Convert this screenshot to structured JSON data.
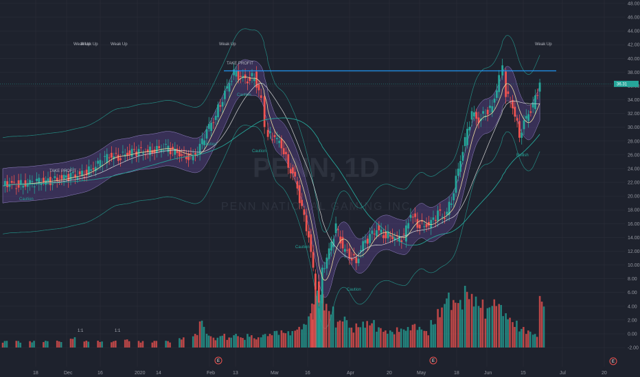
{
  "watermark": {
    "ticker": "PENN, 1D",
    "name": "PENN NATIONAL GAMING INC"
  },
  "price_label": "36.31",
  "colors": {
    "up": "#26a69a",
    "down": "#ef5350",
    "background": "#1e222d",
    "resistance": "#2196f3"
  },
  "annotations": {
    "take_profit_1": "TAKE PROFIT",
    "take_profit_2": "TAKE PROFIT",
    "weak_up": "Weak Up",
    "split": "1:1",
    "caution": "Caution",
    "bullish": "Bullish",
    "earnings": "E"
  },
  "chart_data": {
    "type": "candlestick",
    "yaxis": {
      "ticks": [
        "48.00",
        "46.00",
        "44.00",
        "42.00",
        "40.00",
        "38.00",
        "36.00",
        "34.00",
        "32.00",
        "30.00",
        "28.00",
        "26.00",
        "24.00",
        "22.00",
        "20.00",
        "18.00",
        "16.00",
        "14.00",
        "12.00",
        "10.00",
        "8.00",
        "6.00",
        "4.00",
        "2.00",
        "0.00",
        "-2.00"
      ],
      "range": [
        -2.7,
        48.7
      ]
    },
    "xaxis": {
      "ticks": [
        "18",
        "Dec",
        "16",
        "2020",
        "14",
        "Feb",
        "13",
        "Mar",
        "16",
        "Apr",
        "20",
        "May",
        "18",
        "Jun",
        "15",
        "Jul",
        "20"
      ]
    },
    "resistance_level": 38.2,
    "current_price": 36.31,
    "price_series": [
      [
        0,
        21.5
      ],
      [
        10,
        21.8
      ],
      [
        20,
        21.7
      ],
      [
        30,
        21.8
      ],
      [
        40,
        21.9
      ],
      [
        50,
        22.0
      ],
      [
        60,
        22.2
      ],
      [
        70,
        22.2
      ],
      [
        80,
        22.4
      ],
      [
        90,
        22.6
      ],
      [
        100,
        22.9
      ],
      [
        110,
        23.0
      ],
      [
        120,
        23.4
      ],
      [
        130,
        24.0
      ],
      [
        140,
        24.6
      ],
      [
        150,
        25.4
      ],
      [
        160,
        25.9
      ],
      [
        170,
        25.7
      ],
      [
        180,
        26.1
      ],
      [
        190,
        26.3
      ],
      [
        200,
        26.5
      ],
      [
        210,
        26.4
      ],
      [
        220,
        26.8
      ],
      [
        230,
        26.9
      ],
      [
        240,
        27.0
      ],
      [
        250,
        26.5
      ],
      [
        260,
        26.2
      ],
      [
        270,
        25.9
      ],
      [
        280,
        25.7
      ],
      [
        290,
        27.0
      ],
      [
        300,
        29.5
      ],
      [
        310,
        31.2
      ],
      [
        320,
        33.5
      ],
      [
        330,
        35.8
      ],
      [
        340,
        37.8
      ],
      [
        350,
        37.2
      ],
      [
        360,
        36.9
      ],
      [
        370,
        37.5
      ],
      [
        380,
        34.0
      ],
      [
        385,
        30.0
      ],
      [
        390,
        29.0
      ],
      [
        400,
        28.5
      ],
      [
        410,
        27.5
      ],
      [
        420,
        24.5
      ],
      [
        430,
        22.5
      ],
      [
        440,
        18.0
      ],
      [
        450,
        14.0
      ],
      [
        460,
        7.0
      ],
      [
        465,
        5.0
      ],
      [
        470,
        9.0
      ],
      [
        480,
        12.0
      ],
      [
        490,
        15.5
      ],
      [
        500,
        12.5
      ],
      [
        510,
        11.5
      ],
      [
        520,
        10.5
      ],
      [
        530,
        13.0
      ],
      [
        540,
        14.0
      ],
      [
        550,
        15.2
      ],
      [
        560,
        14.5
      ],
      [
        570,
        14.3
      ],
      [
        580,
        13.8
      ],
      [
        590,
        14.0
      ],
      [
        600,
        17.5
      ],
      [
        610,
        16.0
      ],
      [
        620,
        15.7
      ],
      [
        630,
        16.0
      ],
      [
        640,
        17.5
      ],
      [
        650,
        17.0
      ],
      [
        660,
        19.5
      ],
      [
        670,
        24.0
      ],
      [
        680,
        28.0
      ],
      [
        690,
        32.0
      ],
      [
        700,
        31.0
      ],
      [
        710,
        32.2
      ],
      [
        720,
        33.0
      ],
      [
        730,
        37.0
      ],
      [
        735,
        38.5
      ],
      [
        740,
        35.0
      ],
      [
        750,
        33.2
      ],
      [
        760,
        29.0
      ],
      [
        770,
        31.5
      ],
      [
        780,
        33.0
      ],
      [
        790,
        36.3
      ]
    ],
    "volume": [
      [
        0,
        1
      ],
      [
        20,
        1
      ],
      [
        40,
        1
      ],
      [
        60,
        1
      ],
      [
        80,
        1
      ],
      [
        100,
        1.5
      ],
      [
        120,
        1
      ],
      [
        140,
        1
      ],
      [
        160,
        1
      ],
      [
        180,
        1.2
      ],
      [
        200,
        1
      ],
      [
        220,
        1
      ],
      [
        240,
        1
      ],
      [
        260,
        1.5
      ],
      [
        280,
        2
      ],
      [
        290,
        4
      ],
      [
        300,
        2
      ],
      [
        310,
        1.5
      ],
      [
        320,
        2
      ],
      [
        330,
        1.5
      ],
      [
        340,
        2
      ],
      [
        350,
        1.5
      ],
      [
        360,
        2
      ],
      [
        370,
        1.5
      ],
      [
        380,
        2
      ],
      [
        390,
        2
      ],
      [
        400,
        2.5
      ],
      [
        410,
        2.5
      ],
      [
        420,
        2.5
      ],
      [
        430,
        3
      ],
      [
        440,
        3.5
      ],
      [
        450,
        5
      ],
      [
        455,
        7.5
      ],
      [
        460,
        9
      ],
      [
        465,
        8
      ],
      [
        470,
        7
      ],
      [
        480,
        6
      ],
      [
        490,
        4
      ],
      [
        500,
        4.5
      ],
      [
        510,
        3
      ],
      [
        520,
        3.5
      ],
      [
        530,
        4
      ],
      [
        540,
        4
      ],
      [
        550,
        3
      ],
      [
        560,
        2.5
      ],
      [
        570,
        2.5
      ],
      [
        580,
        3
      ],
      [
        590,
        3
      ],
      [
        600,
        3.5
      ],
      [
        610,
        3
      ],
      [
        620,
        2.5
      ],
      [
        630,
        4
      ],
      [
        640,
        6
      ],
      [
        650,
        8
      ],
      [
        660,
        7
      ],
      [
        670,
        7
      ],
      [
        680,
        9
      ],
      [
        690,
        8
      ],
      [
        700,
        7
      ],
      [
        710,
        6
      ],
      [
        720,
        7
      ],
      [
        730,
        6.5
      ],
      [
        740,
        5
      ],
      [
        750,
        4
      ],
      [
        760,
        3
      ],
      [
        770,
        2.5
      ],
      [
        780,
        2
      ],
      [
        790,
        7.5
      ]
    ]
  }
}
